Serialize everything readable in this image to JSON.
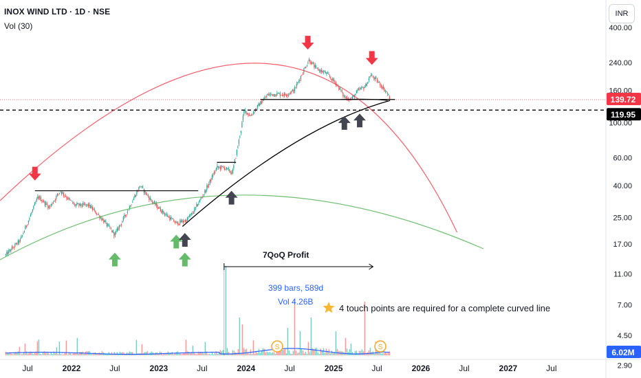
{
  "header": {
    "title": "INOX WIND LTD · 1D · NSE",
    "indicator": "Vol (30)",
    "currency_button": "INR"
  },
  "chart_data": {
    "type": "candlestick",
    "symbol": "INOX WIND LTD",
    "interval": "1D",
    "exchange": "NSE",
    "y_scale": "log",
    "y_ticks": [
      "400.00",
      "240.00",
      "160.00",
      "100.00",
      "60.00",
      "40.00",
      "25.00",
      "17.00",
      "11.00",
      "7.00",
      "4.50",
      "2.90"
    ],
    "x_ticks": [
      {
        "label": "Jul",
        "date": "2021-07-01",
        "bold": false
      },
      {
        "label": "2022",
        "date": "2022-01-01",
        "bold": true
      },
      {
        "label": "Jul",
        "date": "2022-07-01",
        "bold": false
      },
      {
        "label": "2023",
        "date": "2023-01-01",
        "bold": true
      },
      {
        "label": "Jul",
        "date": "2023-07-01",
        "bold": false
      },
      {
        "label": "2024",
        "date": "2024-01-01",
        "bold": true
      },
      {
        "label": "Jul",
        "date": "2024-07-01",
        "bold": false
      },
      {
        "label": "2025",
        "date": "2025-01-01",
        "bold": true
      },
      {
        "label": "Jul",
        "date": "2025-07-01",
        "bold": false
      },
      {
        "label": "2026",
        "date": "2026-01-01",
        "bold": true
      },
      {
        "label": "Jul",
        "date": "2026-07-01",
        "bold": false
      },
      {
        "label": "2027",
        "date": "2027-01-01",
        "bold": true
      },
      {
        "label": "Jul",
        "date": "2027-07-01",
        "bold": false
      }
    ],
    "price_path": [
      [
        "2021-04-01",
        14.5
      ],
      [
        "2021-06-01",
        18
      ],
      [
        "2021-08-15",
        34
      ],
      [
        "2021-10-01",
        29
      ],
      [
        "2021-11-15",
        37
      ],
      [
        "2022-01-15",
        30
      ],
      [
        "2022-03-15",
        30
      ],
      [
        "2022-05-15",
        24
      ],
      [
        "2022-07-01",
        19.5
      ],
      [
        "2022-08-15",
        26
      ],
      [
        "2022-10-15",
        40
      ],
      [
        "2022-12-01",
        32
      ],
      [
        "2023-01-20",
        27
      ],
      [
        "2023-03-15",
        23
      ],
      [
        "2023-04-25",
        24
      ],
      [
        "2023-05-25",
        27
      ],
      [
        "2023-07-15",
        37
      ],
      [
        "2023-09-01",
        52
      ],
      [
        "2023-10-01",
        52
      ],
      [
        "2023-11-05",
        48
      ],
      [
        "2023-12-01",
        75
      ],
      [
        "2023-12-25",
        120
      ],
      [
        "2024-01-20",
        110
      ],
      [
        "2024-02-25",
        130
      ],
      [
        "2024-04-01",
        150
      ],
      [
        "2024-05-15",
        152
      ],
      [
        "2024-06-15",
        150
      ],
      [
        "2024-07-20",
        160
      ],
      [
        "2024-08-20",
        200
      ],
      [
        "2024-09-20",
        250
      ],
      [
        "2024-10-20",
        220
      ],
      [
        "2024-12-01",
        205
      ],
      [
        "2025-01-15",
        175
      ],
      [
        "2025-02-15",
        145
      ],
      [
        "2025-03-15",
        140
      ],
      [
        "2025-04-15",
        160
      ],
      [
        "2025-05-15",
        170
      ],
      [
        "2025-06-05",
        200
      ],
      [
        "2025-06-30",
        185
      ],
      [
        "2025-07-25",
        168
      ],
      [
        "2025-08-15",
        152
      ],
      [
        "2025-08-25",
        140
      ]
    ],
    "last_price": "139.72",
    "level_line": "119.95",
    "volume_last": "6.02M",
    "measure": {
      "bars": "399 bars, 589d",
      "volume": "Vol 4.26B",
      "from": "2023-10-01",
      "to": "2025-06-15"
    },
    "annotations": [
      {
        "text": "7QoQ Profit",
        "kind": "bold-label"
      },
      {
        "text": "4 touch points are required for a complete curved line",
        "kind": "star-note"
      }
    ],
    "horizontal_levels": [
      {
        "price": 37,
        "from": "2021-08-01",
        "to": "2023-06-15"
      },
      {
        "price": 56,
        "from": "2023-09-01",
        "to": "2023-11-20"
      },
      {
        "price": 140,
        "from": "2024-03-01",
        "to": "2025-09-15"
      }
    ],
    "arrows": [
      {
        "color": "red",
        "dir": "down",
        "date": "2021-08-01",
        "price": 43
      },
      {
        "color": "red",
        "dir": "down",
        "date": "2024-09-15",
        "price": 290
      },
      {
        "color": "red",
        "dir": "down",
        "date": "2025-06-10",
        "price": 232
      },
      {
        "color": "green",
        "dir": "up",
        "date": "2022-07-01",
        "price": 15
      },
      {
        "color": "green",
        "dir": "up",
        "date": "2023-03-15",
        "price": 19.5
      },
      {
        "color": "green",
        "dir": "up",
        "date": "2023-04-20",
        "price": 15
      },
      {
        "color": "black",
        "dir": "up",
        "date": "2023-04-20",
        "price": 20
      },
      {
        "color": "black",
        "dir": "up",
        "date": "2023-11-01",
        "price": 37
      },
      {
        "color": "black",
        "dir": "up",
        "date": "2025-02-15",
        "price": 110
      },
      {
        "color": "black",
        "dir": "up",
        "date": "2025-04-20",
        "price": 114
      }
    ],
    "colors": {
      "up": "#26a69a",
      "down": "#ef5350",
      "red_arc": "#f23645",
      "green_arc": "#4caf50",
      "black_arc": "#000000",
      "arrow_black": "#434651",
      "arrow_green": "#66bb6a",
      "last_price_bg": "#f23645",
      "level_bg": "#000000",
      "volume_bg": "#2962ff",
      "measure_text": "#2962ff",
      "dividend_badge": "#f5a623"
    }
  }
}
